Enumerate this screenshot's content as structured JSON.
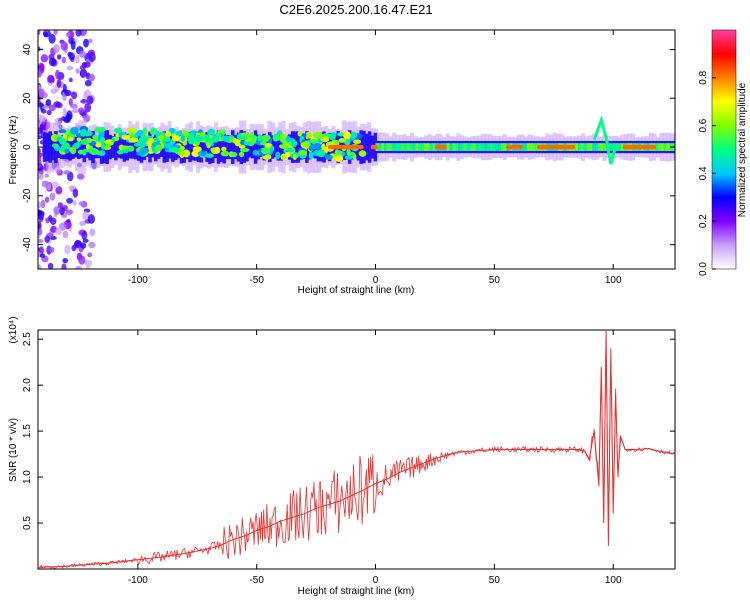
{
  "title": "C2E6.2025.200.16.47.E21",
  "spectrogram": {
    "xlabel": "Height of straight line (km)",
    "ylabel": "Frequency (Hz)",
    "xlim": [
      -142,
      126
    ],
    "ylim": [
      -50,
      48
    ],
    "xticks": [
      -100,
      -50,
      0,
      50,
      100
    ],
    "yticks": [
      40,
      20,
      0,
      -20,
      -40
    ],
    "colorbar": {
      "label": "Normalized spectral amplitude",
      "range": [
        0.0,
        1.0
      ],
      "ticks": [
        0.0,
        0.2,
        0.4,
        0.6,
        0.8
      ],
      "tick_labels": [
        "0.0",
        "0.2",
        "0.4",
        "0.6",
        "0.8"
      ],
      "colors": [
        "#ffffff",
        "#c8a0ff",
        "#8000ff",
        "#0000ff",
        "#00c8ff",
        "#00ff80",
        "#80ff00",
        "#ffff00",
        "#ff8000",
        "#ff0000",
        "#ff40a0"
      ]
    }
  },
  "chart_data": {
    "type": "line",
    "title": "C2E6.2025.200.16.47.E21",
    "xlabel": "Height of straight line (km)",
    "ylabel": "SNR (10 * v/v)",
    "y_multiplier": "(x10⁴)",
    "xlim": [
      -142,
      126
    ],
    "ylim": [
      0,
      2.6
    ],
    "xticks": [
      -100,
      -50,
      0,
      50,
      100
    ],
    "yticks": [
      0.5,
      1.0,
      1.5,
      2.0,
      2.5
    ],
    "ytick_labels": [
      "0.5",
      "1.0",
      "1.5",
      "2.0",
      "2.5"
    ],
    "color": "#e83030",
    "series": [
      {
        "x": [
          -142,
          -130,
          -120,
          -110,
          -100,
          -90,
          -80,
          -70,
          -65,
          -60,
          -55,
          -50,
          -45,
          -40,
          -35,
          -30,
          -25,
          -20,
          -15,
          -10,
          -5,
          0,
          5,
          10,
          15,
          20,
          25,
          30,
          35,
          40,
          45,
          50,
          60,
          70,
          80,
          85,
          88,
          90,
          92,
          94,
          95,
          96,
          97,
          98,
          99,
          100,
          101,
          102,
          103,
          105,
          110,
          115,
          120,
          126
        ],
        "y": [
          0.02,
          0.03,
          0.05,
          0.07,
          0.1,
          0.13,
          0.17,
          0.22,
          0.26,
          0.32,
          0.36,
          0.42,
          0.46,
          0.52,
          0.56,
          0.6,
          0.66,
          0.7,
          0.74,
          0.8,
          0.86,
          0.93,
          0.98,
          1.05,
          1.1,
          1.15,
          1.2,
          1.24,
          1.27,
          1.28,
          1.29,
          1.3,
          1.3,
          1.3,
          1.3,
          1.3,
          1.28,
          1.2,
          1.5,
          0.9,
          2.2,
          0.5,
          2.6,
          0.25,
          2.4,
          0.6,
          1.9,
          1.0,
          1.45,
          1.3,
          1.3,
          1.31,
          1.28,
          1.25
        ]
      }
    ]
  }
}
